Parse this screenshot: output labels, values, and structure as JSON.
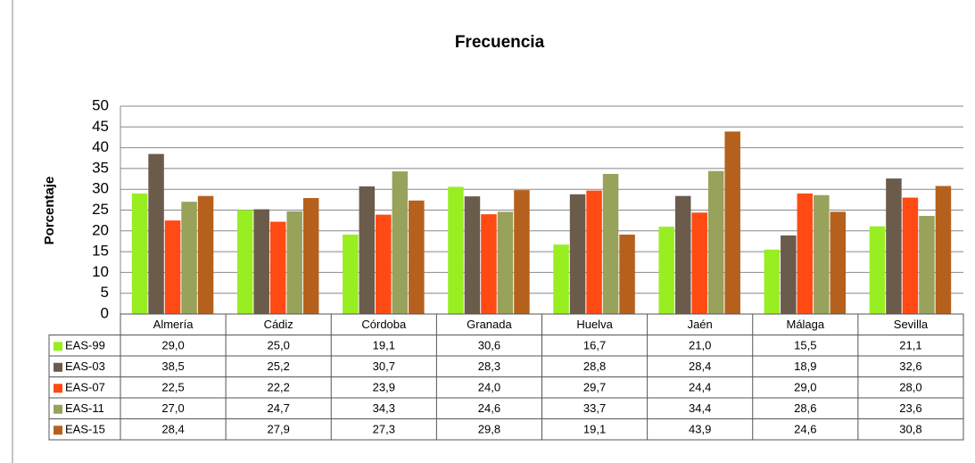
{
  "chart_data": {
    "type": "bar",
    "title": "Frecuencia",
    "y_label": "Porcentaje",
    "categories": [
      "Almería",
      "Cádiz",
      "Córdoba",
      "Granada",
      "Huelva",
      "Jaén",
      "Málaga",
      "Sevilla"
    ],
    "ylim": [
      0,
      50
    ],
    "yticks": [
      0,
      5,
      10,
      15,
      20,
      25,
      30,
      35,
      40,
      45,
      50
    ],
    "grid": true,
    "series": [
      {
        "name": "EAS-99",
        "color": "#99ee22",
        "values": [
          29.0,
          25.0,
          19.1,
          30.6,
          16.7,
          21.0,
          15.5,
          21.1
        ],
        "value_labels": [
          "29,0",
          "25,0",
          "19,1",
          "30,6",
          "16,7",
          "21,0",
          "15,5",
          "21,1"
        ]
      },
      {
        "name": "EAS-03",
        "color": "#6b5b4b",
        "values": [
          38.5,
          25.2,
          30.7,
          28.3,
          28.8,
          28.4,
          18.9,
          32.6
        ],
        "value_labels": [
          "38,5",
          "25,2",
          "30,7",
          "28,3",
          "28,8",
          "28,4",
          "18,9",
          "32,6"
        ]
      },
      {
        "name": "EAS-07",
        "color": "#ff4a14",
        "values": [
          22.5,
          22.2,
          23.9,
          24.0,
          29.7,
          24.4,
          29.0,
          28.0
        ],
        "value_labels": [
          "22,5",
          "22,2",
          "23,9",
          "24,0",
          "29,7",
          "24,4",
          "29,0",
          "28,0"
        ]
      },
      {
        "name": "EAS-11",
        "color": "#98a25a",
        "values": [
          27.0,
          24.7,
          34.3,
          24.6,
          33.7,
          34.4,
          28.6,
          23.6
        ],
        "value_labels": [
          "27,0",
          "24,7",
          "34,3",
          "24,6",
          "33,7",
          "34,4",
          "28,6",
          "23,6"
        ]
      },
      {
        "name": "EAS-15",
        "color": "#b5611d",
        "values": [
          28.4,
          27.9,
          27.3,
          29.8,
          19.1,
          43.9,
          24.6,
          30.8
        ],
        "value_labels": [
          "28,4",
          "27,9",
          "27,3",
          "29,8",
          "19,1",
          "43,9",
          "24,6",
          "30,8"
        ]
      }
    ]
  }
}
